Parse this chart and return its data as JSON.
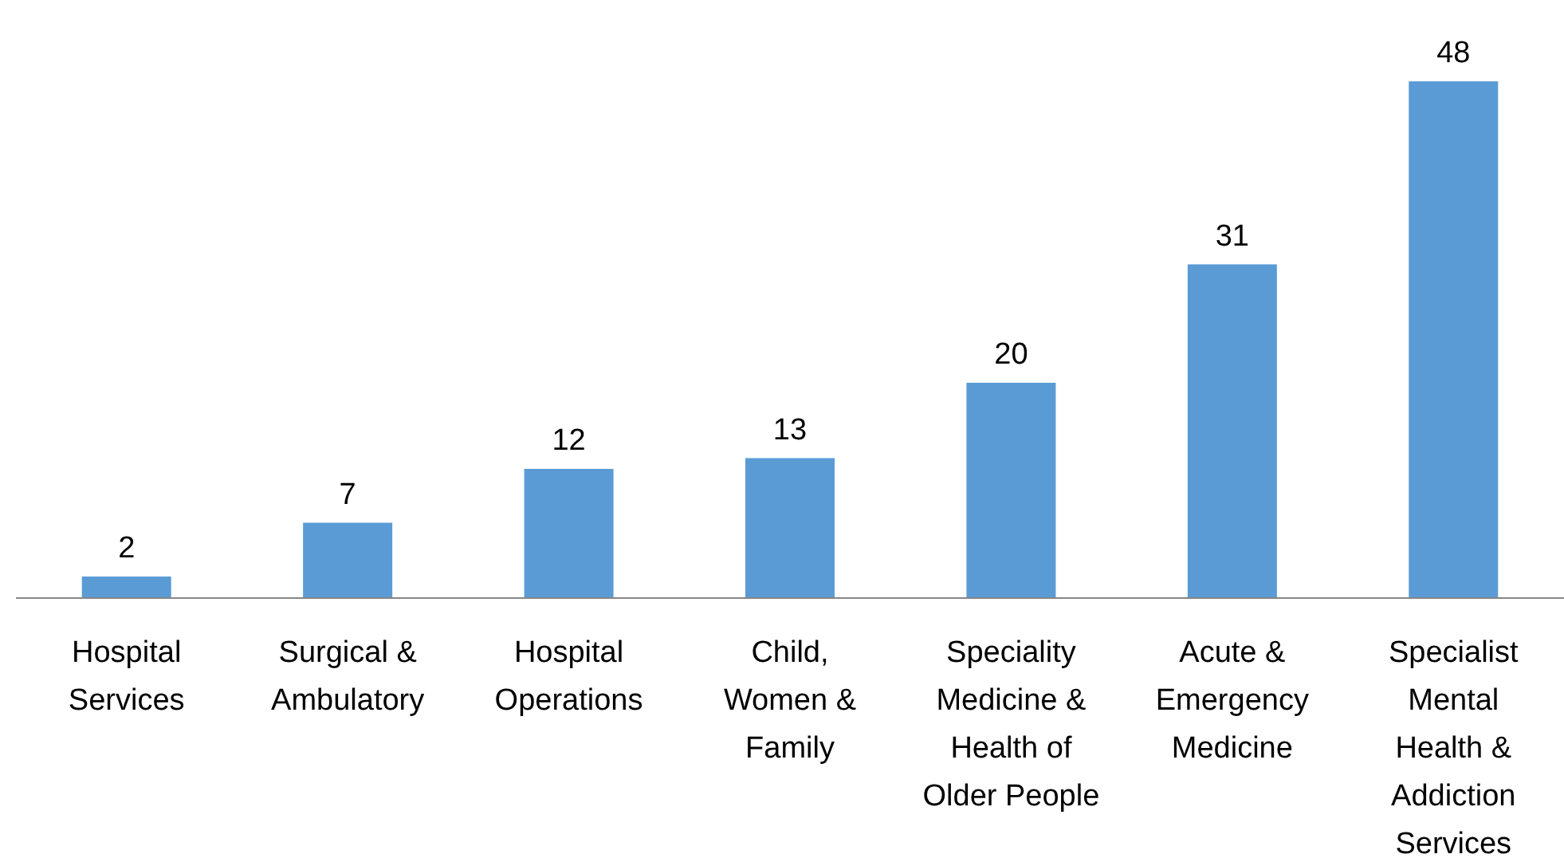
{
  "chart_data": {
    "type": "bar",
    "categories": [
      "Hospital Services",
      "Surgical & Ambulatory",
      "Hospital Operations",
      "Child, Women & Family",
      "Speciality Medicine & Health of Older People",
      "Acute & Emergency Medicine",
      "Specialist Mental Health & Addiction Services"
    ],
    "values": [
      2,
      7,
      12,
      13,
      20,
      31,
      48
    ],
    "color": "#5b9bd5",
    "data_labels": true
  }
}
